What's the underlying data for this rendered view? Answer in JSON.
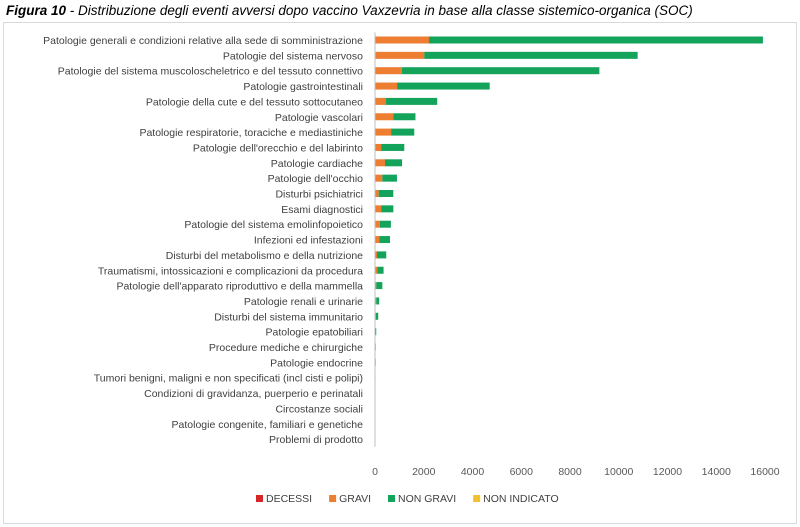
{
  "caption": {
    "fig_label": "Figura 10",
    "fig_text": " - Distribuzione degli eventi avversi dopo vaccino Vaxzevria in base alla classe sistemico-organica (SOC)"
  },
  "chart_data": {
    "type": "bar",
    "orientation": "horizontal",
    "stacked": true,
    "categories": [
      "Patologie generali e condizioni relative alla sede di somministrazione",
      "Patologie del sistema nervoso",
      "Patologie del sistema muscoloscheletrico e del tessuto connettivo",
      "Patologie gastrointestinali",
      "Patologie della cute e del tessuto sottocutaneo",
      "Patologie vascolari",
      "Patologie respiratorie, toraciche e mediastiniche",
      "Patologie dell'orecchio e del labirinto",
      "Patologie cardiache",
      "Patologie dell'occhio",
      "Disturbi psichiatrici",
      "Esami diagnostici",
      "Patologie del sistema emolinfopoietico",
      "Infezioni ed infestazioni",
      "Disturbi del metabolismo e della nutrizione",
      "Traumatismi, intossicazioni e complicazioni da procedura",
      "Patologie dell'apparato riproduttivo e della mammella",
      "Patologie renali e urinarie",
      "Disturbi del sistema immunitario",
      "Patologie epatobiliari",
      "Procedure mediche e chirurgiche",
      "Patologie endocrine",
      "Tumori benigni, maligni e non specificati (incl cisti e polipi)",
      "Condizioni di gravidanza, puerperio e perinatali",
      "Circostanze sociali",
      "Patologie congenite, familiari e genetiche",
      "Problemi di prodotto"
    ],
    "series": [
      {
        "name": "DECESSI",
        "color": "#d62728",
        "values": [
          15,
          25,
          5,
          5,
          2,
          10,
          10,
          1,
          10,
          1,
          1,
          2,
          2,
          5,
          2,
          2,
          1,
          1,
          1,
          1,
          0,
          0,
          0,
          0,
          0,
          0,
          0
        ]
      },
      {
        "name": "GRAVI",
        "color": "#ed7d31",
        "values": [
          2200,
          2000,
          1100,
          900,
          450,
          750,
          650,
          250,
          400,
          300,
          150,
          250,
          200,
          180,
          80,
          100,
          50,
          50,
          30,
          20,
          10,
          10,
          10,
          5,
          5,
          5,
          0
        ]
      },
      {
        "name": "NON GRAVI",
        "color": "#13a35b",
        "values": [
          13700,
          8750,
          8100,
          3800,
          2100,
          900,
          950,
          950,
          700,
          600,
          600,
          500,
          450,
          430,
          380,
          250,
          250,
          120,
          100,
          30,
          20,
          20,
          10,
          10,
          10,
          5,
          5
        ]
      },
      {
        "name": "NON INDICATO",
        "color": "#f2c12e",
        "values": [
          0,
          0,
          0,
          0,
          0,
          0,
          0,
          0,
          0,
          0,
          0,
          0,
          0,
          0,
          0,
          0,
          0,
          0,
          0,
          0,
          0,
          0,
          0,
          0,
          0,
          0,
          0
        ]
      }
    ],
    "xlim": [
      0,
      16000
    ],
    "xticks": [
      "0",
      "2000",
      "4000",
      "6000",
      "8000",
      "10000",
      "12000",
      "14000",
      "16000"
    ],
    "grid": false,
    "legend_position": "bottom"
  }
}
